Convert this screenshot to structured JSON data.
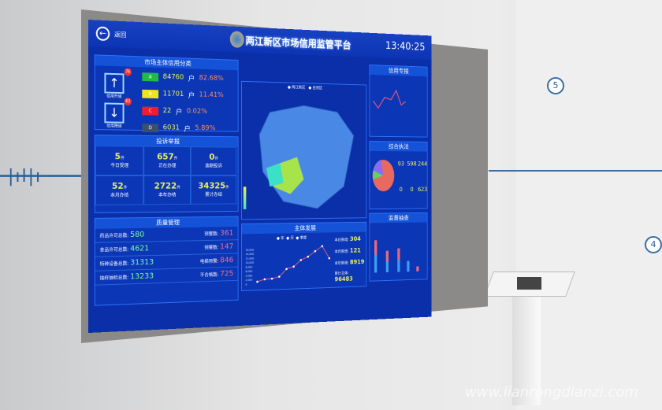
{
  "header": {
    "back_label": "返回",
    "title": "两江新区市场信用监管平台",
    "time": "13:40:25"
  },
  "credit": {
    "title": "市场主体信用分类",
    "upgrade": {
      "label": "信用升级",
      "count": "76"
    },
    "downgrade": {
      "label": "信用降级",
      "count": "63"
    },
    "grades": [
      {
        "grade": "A",
        "count": "84760",
        "unit": "户",
        "pct": "82.68%",
        "color": "#22b84a"
      },
      {
        "grade": "B",
        "count": "11701",
        "unit": "户",
        "pct": "11.41%",
        "color": "#f2e21c"
      },
      {
        "grade": "C",
        "count": "22",
        "unit": "户",
        "pct": "0.02%",
        "color": "#ee1f2d"
      },
      {
        "grade": "D",
        "count": "6031",
        "unit": "户",
        "pct": "5.89%",
        "color": "#3b4f6e"
      }
    ]
  },
  "complaints": {
    "title": "投诉举报",
    "unit": "件",
    "items": [
      {
        "value": "5",
        "label": "今日受理"
      },
      {
        "value": "657",
        "label": "正在办理"
      },
      {
        "value": "0",
        "label": "逾期投诉"
      },
      {
        "value": "52",
        "label": "本月办结"
      },
      {
        "value": "2722",
        "label": "本年办结"
      },
      {
        "value": "34325",
        "label": "累计办结"
      }
    ]
  },
  "quality": {
    "title": "质量管理",
    "rows": [
      {
        "label": "药品许可总数:",
        "value": "580",
        "warn_label": "预警数:",
        "warn": "361"
      },
      {
        "label": "食品许可总数:",
        "value": "4621",
        "warn_label": "预警数:",
        "warn": "147"
      },
      {
        "label": "特种设备总数:",
        "value": "31313",
        "warn_label": "电梯预警:",
        "warn": "846"
      },
      {
        "label": "抽样抽检总数:",
        "value": "13233",
        "warn_label": "不合格数:",
        "warn": "725"
      }
    ]
  },
  "map": {
    "legend": [
      "两江新区",
      "自贸区"
    ],
    "colors": {
      "region": "#4a88e6",
      "highlight1": "#a7e34a",
      "highlight2": "#3ce0c8"
    }
  },
  "development": {
    "title": "主体发展",
    "legend": [
      "年",
      "月",
      "季度"
    ],
    "stats": [
      {
        "label": "本日新增:",
        "value": "304"
      },
      {
        "label": "本月新增:",
        "value": "121"
      },
      {
        "label": "本年新增:",
        "value": "8919"
      },
      {
        "label": "累计主体:",
        "value": "96483"
      }
    ]
  },
  "right": {
    "panel1_title": "信用专报",
    "panel2_title": "综合执法",
    "panel3_title": "监督抽查",
    "enforce": [
      {
        "value": "93"
      },
      {
        "value": "598"
      },
      {
        "value": "244"
      },
      {
        "value": "0"
      },
      {
        "value": "0"
      },
      {
        "value": "623"
      }
    ]
  },
  "chart_data": {
    "type": "line",
    "ylim": [
      0,
      18000
    ],
    "y_ticks": [
      "0",
      "2,000",
      "4,000",
      "6,000",
      "8,000",
      "10,000",
      "12,000",
      "14,000",
      "16,000"
    ],
    "values": [
      1000,
      2000,
      2200,
      3000,
      6500,
      7500,
      10500,
      12000,
      14500,
      16800,
      11000
    ]
  },
  "wall": {
    "step5": "5",
    "step4": "4",
    "watermark": "www.lianrongdianzi.com"
  }
}
